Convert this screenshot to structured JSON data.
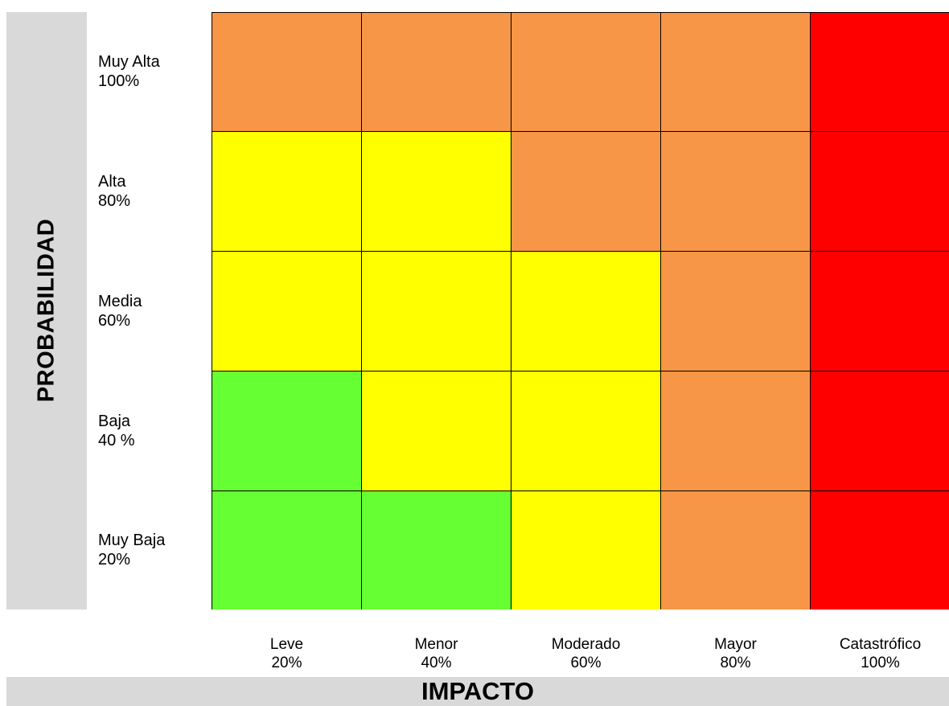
{
  "chart_data": {
    "type": "heatmap",
    "title": "",
    "xlabel": "IMPACTO",
    "ylabel": "PROBABILIDAD",
    "x_categories": [
      {
        "name": "Leve",
        "value": "20%"
      },
      {
        "name": "Menor",
        "value": "40%"
      },
      {
        "name": "Moderado",
        "value": "60%"
      },
      {
        "name": "Mayor",
        "value": "80%"
      },
      {
        "name": "Catastrófico",
        "value": "100%"
      }
    ],
    "y_categories": [
      {
        "name": "Muy Alta",
        "value": "100%"
      },
      {
        "name": "Alta",
        "value": "80%"
      },
      {
        "name": "Media",
        "value": "60%"
      },
      {
        "name": "Baja",
        "value": "40 %"
      },
      {
        "name": "Muy Baja",
        "value": "20%"
      }
    ],
    "cells": [
      [
        "orange",
        "orange",
        "orange",
        "orange",
        "red"
      ],
      [
        "yellow",
        "yellow",
        "orange",
        "orange",
        "red"
      ],
      [
        "yellow",
        "yellow",
        "yellow",
        "orange",
        "red"
      ],
      [
        "green",
        "yellow",
        "yellow",
        "orange",
        "red"
      ],
      [
        "green",
        "green",
        "yellow",
        "orange",
        "red"
      ]
    ],
    "colors": {
      "green": "#66ff33",
      "yellow": "#ffff00",
      "orange": "#f79646",
      "red": "#ff0000"
    }
  }
}
